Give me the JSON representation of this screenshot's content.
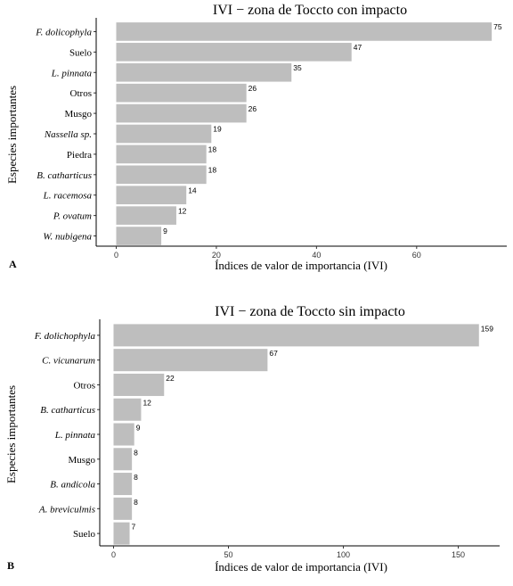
{
  "chart_data": [
    {
      "type": "bar",
      "orientation": "horizontal",
      "panel": "A",
      "title": "IVI − zona de Toccto con impacto",
      "xlabel": "Índices de valor de importancia (IVI)",
      "ylabel": "Especies importantes",
      "categories": [
        "F. dolicophyla",
        "Suelo",
        "L. pinnata",
        "Otros",
        "Musgo",
        "Nassella sp.",
        "Piedra",
        "B. catharticus",
        "L. racemosa",
        "P. ovatum",
        "W. nubigena"
      ],
      "italic": [
        true,
        false,
        true,
        false,
        false,
        true,
        false,
        true,
        true,
        true,
        true
      ],
      "values": [
        75,
        47,
        35,
        26,
        26,
        19,
        18,
        18,
        14,
        12,
        9
      ],
      "xlim": [
        -4,
        78
      ],
      "xticks": [
        0,
        20,
        40,
        60
      ],
      "bar_color": "#bebebe",
      "grid": false
    },
    {
      "type": "bar",
      "orientation": "horizontal",
      "panel": "B",
      "title": "IVI − zona de Toccto sin impacto",
      "xlabel": "Índices de valor de importancia (IVI)",
      "ylabel": "Especies importantes",
      "categories": [
        "F. dolichophyla",
        "C. vicunarum",
        "Otros",
        "B. catharticus",
        "L. pinnata",
        "Musgo",
        "B. andicola",
        "A. breviculmis",
        "Suelo"
      ],
      "italic": [
        true,
        true,
        false,
        true,
        true,
        false,
        true,
        true,
        false
      ],
      "values": [
        159,
        67,
        22,
        12,
        9,
        8,
        8,
        8,
        7
      ],
      "xlim": [
        -6,
        168
      ],
      "xticks": [
        0,
        50,
        100,
        150
      ],
      "bar_color": "#bebebe",
      "grid": false
    }
  ]
}
